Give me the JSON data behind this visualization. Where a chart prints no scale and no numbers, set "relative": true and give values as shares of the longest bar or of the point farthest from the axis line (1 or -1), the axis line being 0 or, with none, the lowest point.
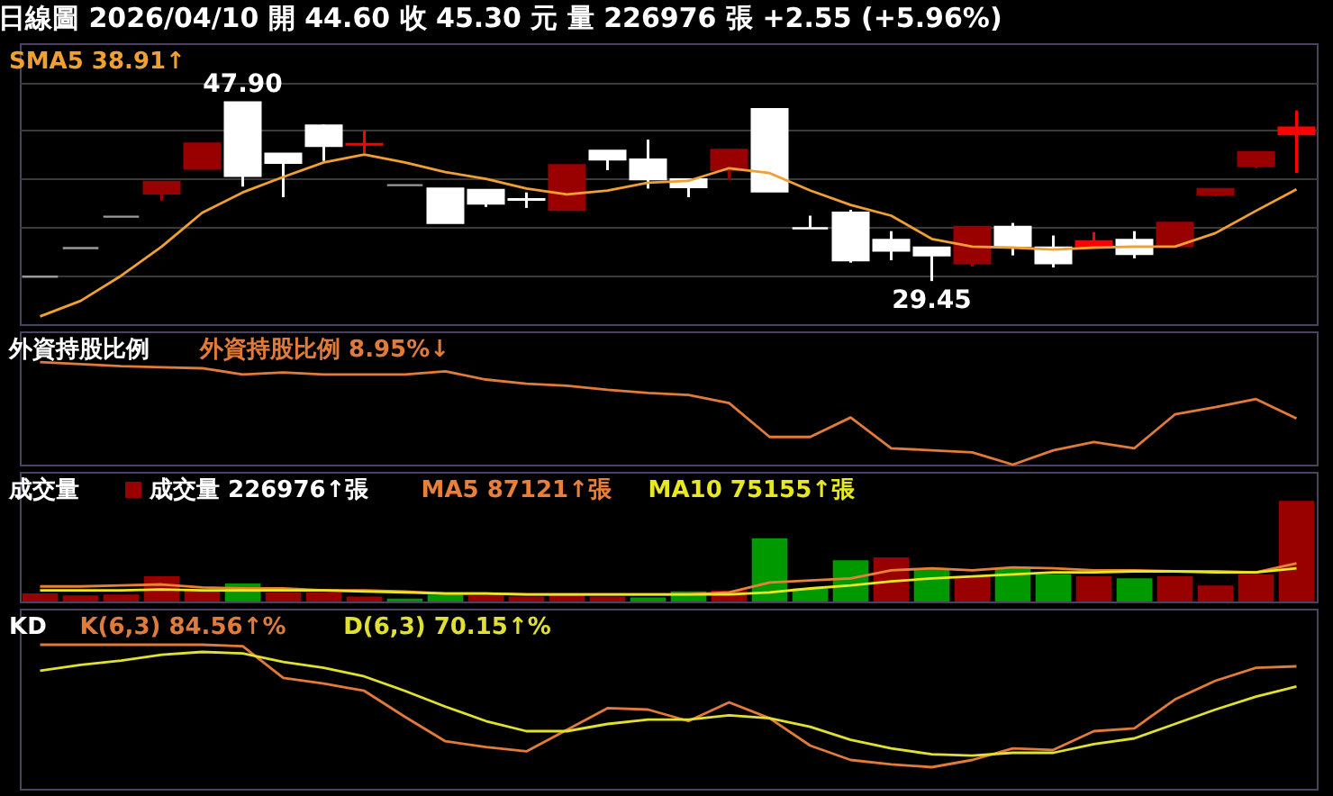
{
  "chart_data": [
    {
      "type": "candlestick",
      "title": "日線圖  2026/04/10  開 44.60  收 45.30 元  量 226976 張  +2.55 (+5.96%)",
      "categories": [
        null,
        null,
        null,
        null,
        null,
        null,
        null,
        null,
        null,
        null,
        null,
        null,
        null,
        null,
        null,
        null,
        null,
        null,
        null,
        null,
        null,
        null,
        null,
        null,
        null,
        null,
        null,
        null,
        null,
        null,
        null,
        null
      ],
      "ohlc": [
        [
          29.9,
          29.9,
          29.9,
          29.9
        ],
        [
          32.85,
          32.85,
          32.85,
          32.85
        ],
        [
          36.1,
          36.1,
          36.1,
          36.1
        ],
        [
          38.5,
          39.7,
          37.75,
          39.7
        ],
        [
          41.05,
          43.65,
          41.05,
          43.65
        ],
        [
          47.9,
          47.9,
          39.2,
          40.3
        ],
        [
          42.6,
          42.6,
          38.1,
          41.65
        ],
        [
          45.5,
          45.6,
          41.85,
          43.4
        ],
        [
          43.55,
          45.0,
          42.65,
          43.6
        ],
        [
          39.35,
          39.35,
          39.35,
          39.35
        ],
        [
          39.0,
          39.0,
          35.45,
          35.45
        ],
        [
          38.85,
          38.85,
          37.1,
          37.45
        ],
        [
          37.9,
          38.6,
          37.0,
          37.85
        ],
        [
          36.8,
          41.4,
          36.8,
          41.4
        ],
        [
          42.9,
          42.9,
          40.9,
          42.0
        ],
        [
          42.0,
          44.05,
          39.0,
          39.95
        ],
        [
          39.95,
          39.95,
          38.1,
          39.15
        ],
        [
          40.9,
          43.0,
          39.85,
          43.0
        ],
        [
          47.2,
          47.2,
          38.7,
          38.7
        ],
        [
          34.9,
          36.2,
          34.9,
          34.9
        ],
        [
          36.5,
          36.8,
          31.35,
          31.6
        ],
        [
          33.7,
          34.6,
          31.6,
          32.6
        ],
        [
          32.9,
          32.9,
          29.45,
          32.1
        ],
        [
          31.3,
          35.05,
          30.95,
          35.05
        ],
        [
          35.05,
          35.45,
          32.1,
          33.05
        ],
        [
          32.9,
          34.15,
          30.85,
          31.3
        ],
        [
          33.05,
          34.5,
          33.05,
          33.55
        ],
        [
          33.7,
          34.6,
          31.8,
          32.25
        ],
        [
          33.05,
          35.45,
          33.05,
          35.45
        ],
        [
          38.4,
          38.95,
          38.2,
          38.95
        ],
        [
          41.35,
          42.75,
          41.1,
          42.75
        ],
        [
          44.6,
          47.05,
          40.6,
          45.3
        ]
      ],
      "colors": [
        "#9a9a9a",
        "#9a9a9a",
        "#9a9a9a",
        "#990000",
        "#990000",
        "#ffffff",
        "#ffffff",
        "#ffffff",
        "#ff0000",
        "#9a9a9a",
        "#ffffff",
        "#ffffff",
        "#ffffff",
        "#990000",
        "#ffffff",
        "#ffffff",
        "#ffffff",
        "#990000",
        "#ffffff",
        "#ffffff",
        "#ffffff",
        "#ffffff",
        "#ffffff",
        "#990000",
        "#ffffff",
        "#ffffff",
        "#ff0000",
        "#ffffff",
        "#990000",
        "#990000",
        "#990000",
        "#ff0000"
      ],
      "series": [
        {
          "type": "line",
          "name": "SMA5 38.91↑",
          "color": "#f0a030",
          "values": [
            25.8,
            27.4,
            30.0,
            33.0,
            36.5,
            38.6,
            40.2,
            41.7,
            42.5,
            41.7,
            40.7,
            40.0,
            39.0,
            38.4,
            38.8,
            39.6,
            39.8,
            41.1,
            40.6,
            38.8,
            37.3,
            36.2,
            33.8,
            33.0,
            32.9,
            32.7,
            32.9,
            33.0,
            33.0,
            34.4,
            36.7,
            38.91
          ]
        }
      ],
      "ylim": [
        25,
        54
      ],
      "yticks": [
        {
          "value": 30,
          "label": null
        },
        {
          "value": 35,
          "label": null
        },
        {
          "value": 40,
          "label": null
        },
        {
          "value": 45,
          "label": null
        },
        {
          "value": 50,
          "label": null
        }
      ],
      "grid": true,
      "annotations": [
        {
          "text": "47.90",
          "y": 47.9
        },
        {
          "text": "29.45",
          "y": 29.45
        }
      ]
    },
    {
      "type": "line",
      "title": "外資持股比例",
      "relative": true,
      "categories": [
        null,
        null,
        null,
        null,
        null,
        null,
        null,
        null,
        null,
        null,
        null,
        null,
        null,
        null,
        null,
        null,
        null,
        null,
        null,
        null,
        null,
        null,
        null,
        null,
        null,
        null,
        null,
        null,
        null,
        null,
        null,
        null
      ],
      "series": [
        {
          "name": "外資持股比例 8.95%↓",
          "color": "#e07b39",
          "values": [
            1.0,
            0.98,
            0.96,
            0.95,
            0.94,
            0.88,
            0.9,
            0.88,
            0.88,
            0.88,
            0.91,
            0.83,
            0.79,
            0.77,
            0.73,
            0.7,
            0.68,
            0.6,
            0.27,
            0.27,
            0.46,
            0.16,
            0.14,
            0.12,
            0.0,
            0.14,
            0.22,
            0.16,
            0.49,
            0.56,
            0.64,
            0.45
          ]
        }
      ]
    },
    {
      "type": "bar",
      "title": "成交量",
      "relative": true,
      "categories": [
        null,
        null,
        null,
        null,
        null,
        null,
        null,
        null,
        null,
        null,
        null,
        null,
        null,
        null,
        null,
        null,
        null,
        null,
        null,
        null,
        null,
        null,
        null,
        null,
        null,
        null,
        null,
        null,
        null,
        null,
        null,
        null
      ],
      "series": [
        {
          "name": "成交量 226976↑張",
          "colors": [
            "#990000",
            "#990000",
            "#990000",
            "#990000",
            "#990000",
            "#009900",
            "#990000",
            "#990000",
            "#990000",
            "#009900",
            "#009900",
            "#990000",
            "#990000",
            "#990000",
            "#990000",
            "#009900",
            "#009900",
            "#990000",
            "#009900",
            "#009900",
            "#009900",
            "#990000",
            "#009900",
            "#990000",
            "#009900",
            "#009900",
            "#990000",
            "#009900",
            "#990000",
            "#990000",
            "#990000",
            "#990000"
          ],
          "values": [
            0.08,
            0.06,
            0.07,
            0.25,
            0.11,
            0.18,
            0.09,
            0.09,
            0.05,
            0.03,
            0.07,
            0.06,
            0.05,
            0.07,
            0.05,
            0.04,
            0.1,
            0.11,
            0.63,
            0.13,
            0.41,
            0.44,
            0.33,
            0.25,
            0.33,
            0.27,
            0.25,
            0.23,
            0.25,
            0.16,
            0.27,
            1
          ]
        },
        {
          "type": "line",
          "name": "MA5 87121↑張",
          "color": "#e8803a",
          "values": [
            0.15,
            0.15,
            0.16,
            0.17,
            0.14,
            0.13,
            0.13,
            0.11,
            0.11,
            0.1,
            0.08,
            0.08,
            0.07,
            0.07,
            0.07,
            0.07,
            0.07,
            0.09,
            0.19,
            0.21,
            0.23,
            0.31,
            0.33,
            0.31,
            0.34,
            0.33,
            0.31,
            0.31,
            0.3,
            0.3,
            0.29,
            0.38
          ]
        },
        {
          "type": "line",
          "name": "MA10 75155↑張",
          "color": "#e8e820",
          "values": [
            0.11,
            0.11,
            0.11,
            0.12,
            0.11,
            0.11,
            0.11,
            0.11,
            0.1,
            0.09,
            0.08,
            0.08,
            0.07,
            0.07,
            0.07,
            0.07,
            0.07,
            0.07,
            0.09,
            0.13,
            0.16,
            0.2,
            0.23,
            0.25,
            0.27,
            0.29,
            0.29,
            0.3,
            0.3,
            0.29,
            0.29,
            0.33
          ]
        }
      ]
    },
    {
      "type": "line",
      "title": "KD",
      "relative": true,
      "categories": [
        null,
        null,
        null,
        null,
        null,
        null,
        null,
        null,
        null,
        null,
        null,
        null,
        null,
        null,
        null,
        null,
        null,
        null,
        null,
        null,
        null,
        null,
        null,
        null,
        null,
        null,
        null,
        null,
        null,
        null,
        null,
        null
      ],
      "series": [
        {
          "name": "K(6,3) 84.56↑%",
          "color": "#e07b39",
          "values": [
            1,
            1,
            1,
            1,
            1,
            0.99,
            0.77,
            0.73,
            0.68,
            0.5,
            0.33,
            0.29,
            0.26,
            0.41,
            0.56,
            0.55,
            0.47,
            0.6,
            0.49,
            0.3,
            0.2,
            0.17,
            0.15,
            0.2,
            0.28,
            0.27,
            0.4,
            0.42,
            0.62,
            0.75,
            0.84,
            0.85
          ]
        },
        {
          "name": "D(6,3) 70.15↑%",
          "color": "#e0e030",
          "values": [
            0.82,
            0.86,
            0.89,
            0.93,
            0.95,
            0.94,
            0.88,
            0.84,
            0.78,
            0.68,
            0.57,
            0.47,
            0.4,
            0.4,
            0.45,
            0.48,
            0.48,
            0.51,
            0.49,
            0.43,
            0.34,
            0.28,
            0.24,
            0.23,
            0.25,
            0.25,
            0.31,
            0.35,
            0.45,
            0.55,
            0.64,
            0.71
          ]
        }
      ]
    }
  ]
}
